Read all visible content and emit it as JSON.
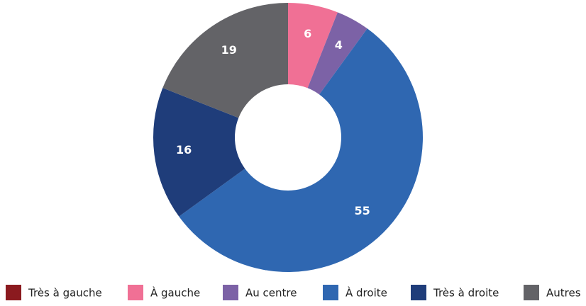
{
  "chart_data": {
    "type": "donut",
    "categories": [
      "Très à gauche",
      "À gauche",
      "Au centre",
      "À droite",
      "Très à droite",
      "Autres"
    ],
    "values": [
      0,
      6,
      4,
      55,
      16,
      19
    ],
    "colors": [
      "#8b1a1f",
      "#f07095",
      "#7c62a6",
      "#2f67b1",
      "#1f3d7a",
      "#636367"
    ],
    "legend": "bottom"
  }
}
